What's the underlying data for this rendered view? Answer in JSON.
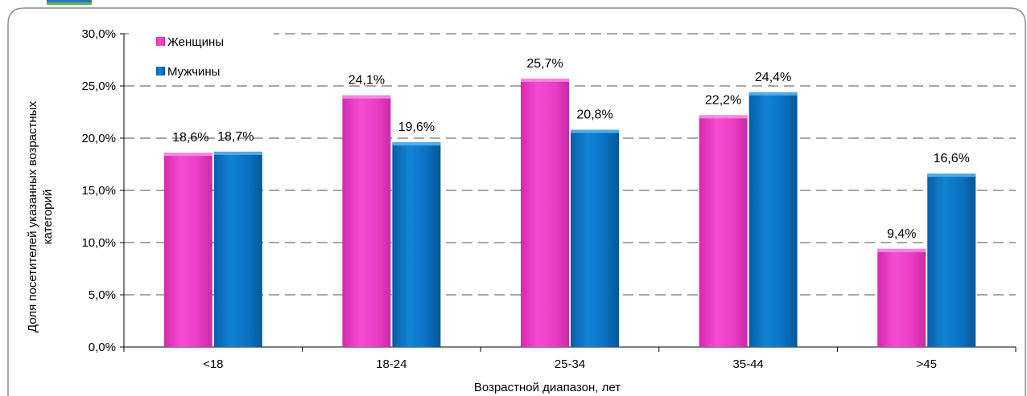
{
  "chart_data": {
    "type": "bar",
    "categories": [
      "<18",
      "18-24",
      "25-34",
      "35-44",
      ">45"
    ],
    "series": [
      {
        "name": "Женщины",
        "values": [
          18.6,
          24.1,
          25.7,
          22.2,
          9.4
        ],
        "labels": [
          "18,6%",
          "24,1%",
          "25,7%",
          "22,2%",
          "9,4%"
        ],
        "color": "#F03CC8"
      },
      {
        "name": "Мужчины",
        "values": [
          18.7,
          19.6,
          20.8,
          24.4,
          16.6
        ],
        "labels": [
          "18,7%",
          "19,6%",
          "20,8%",
          "24,4%",
          "16,6%"
        ],
        "color": "#0A70C0"
      }
    ],
    "yticks": [
      0,
      5,
      10,
      15,
      20,
      25,
      30
    ],
    "ytick_labels": [
      "0,0%",
      "5,0%",
      "10,0%",
      "15,0%",
      "20,0%",
      "25,0%",
      "30,0%"
    ],
    "ylim": [
      0,
      30
    ],
    "xlabel": "Возрастной диапазон, лет",
    "ylabel_lines": [
      "Доля посетителей указанных возрастных",
      "категорий"
    ],
    "grid": true,
    "legend_position": "top-left"
  }
}
